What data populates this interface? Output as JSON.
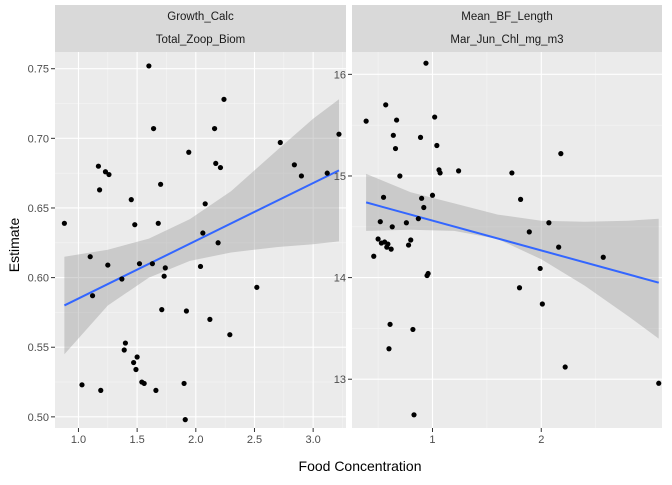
{
  "chart_data": [
    {
      "type": "scatter",
      "strip_labels": [
        "Growth_Calc",
        "Total_Zoop_Biom"
      ],
      "xlim": [
        0.8,
        3.28
      ],
      "ylim": [
        0.492,
        0.762
      ],
      "x_ticks": [
        1.0,
        1.5,
        2.0,
        2.5,
        3.0
      ],
      "x_tick_labels": [
        "1.0",
        "1.5",
        "2.0",
        "2.5",
        "3.0"
      ],
      "y_ticks": [
        0.5,
        0.55,
        0.6,
        0.65,
        0.7,
        0.75
      ],
      "y_tick_labels": [
        "0.50",
        "0.55",
        "0.60",
        "0.65",
        "0.70",
        "0.75"
      ],
      "points": [
        [
          0.88,
          0.639
        ],
        [
          1.03,
          0.523
        ],
        [
          1.1,
          0.615
        ],
        [
          1.12,
          0.587
        ],
        [
          1.17,
          0.68
        ],
        [
          1.18,
          0.663
        ],
        [
          1.19,
          0.519
        ],
        [
          1.23,
          0.676
        ],
        [
          1.25,
          0.609
        ],
        [
          1.26,
          0.674
        ],
        [
          1.37,
          0.599
        ],
        [
          1.39,
          0.548
        ],
        [
          1.4,
          0.553
        ],
        [
          1.45,
          0.656
        ],
        [
          1.47,
          0.539
        ],
        [
          1.48,
          0.638
        ],
        [
          1.49,
          0.534
        ],
        [
          1.5,
          0.543
        ],
        [
          1.52,
          0.61
        ],
        [
          1.54,
          0.525
        ],
        [
          1.56,
          0.524
        ],
        [
          1.6,
          0.752
        ],
        [
          1.63,
          0.61
        ],
        [
          1.64,
          0.707
        ],
        [
          1.66,
          0.519
        ],
        [
          1.68,
          0.639
        ],
        [
          1.7,
          0.667
        ],
        [
          1.71,
          0.577
        ],
        [
          1.73,
          0.601
        ],
        [
          1.74,
          0.607
        ],
        [
          1.9,
          0.524
        ],
        [
          1.91,
          0.498
        ],
        [
          1.92,
          0.576
        ],
        [
          1.94,
          0.69
        ],
        [
          2.04,
          0.608
        ],
        [
          2.06,
          0.632
        ],
        [
          2.08,
          0.653
        ],
        [
          2.12,
          0.57
        ],
        [
          2.16,
          0.707
        ],
        [
          2.17,
          0.682
        ],
        [
          2.19,
          0.625
        ],
        [
          2.21,
          0.679
        ],
        [
          2.24,
          0.728
        ],
        [
          2.29,
          0.559
        ],
        [
          2.52,
          0.593
        ],
        [
          2.72,
          0.697
        ],
        [
          2.84,
          0.681
        ],
        [
          2.9,
          0.673
        ],
        [
          3.12,
          0.675
        ],
        [
          3.22,
          0.703
        ]
      ],
      "fit_line": [
        [
          0.88,
          0.58
        ],
        [
          3.22,
          0.677
        ]
      ],
      "ci_band": {
        "x": [
          0.88,
          1.25,
          1.6,
          1.95,
          2.3,
          2.7,
          3.0,
          3.22
        ],
        "lower": [
          0.545,
          0.58,
          0.6,
          0.612,
          0.618,
          0.622,
          0.624,
          0.626
        ],
        "upper": [
          0.615,
          0.62,
          0.628,
          0.642,
          0.662,
          0.692,
          0.714,
          0.728
        ]
      }
    },
    {
      "type": "scatter",
      "strip_labels": [
        "Mean_BF_Length",
        "Mar_Jun_Chl_mg_m3"
      ],
      "xlim": [
        0.26,
        3.11
      ],
      "ylim": [
        12.52,
        16.22
      ],
      "x_ticks": [
        1,
        2
      ],
      "x_tick_labels": [
        "1",
        "2"
      ],
      "y_ticks": [
        13,
        14,
        15,
        16
      ],
      "y_tick_labels": [
        "13",
        "14",
        "15",
        "16"
      ],
      "points": [
        [
          0.39,
          15.54
        ],
        [
          0.46,
          14.21
        ],
        [
          0.5,
          14.38
        ],
        [
          0.52,
          14.55
        ],
        [
          0.53,
          14.34
        ],
        [
          0.55,
          14.79
        ],
        [
          0.56,
          14.35
        ],
        [
          0.57,
          15.7
        ],
        [
          0.58,
          14.3
        ],
        [
          0.59,
          14.33
        ],
        [
          0.6,
          13.3
        ],
        [
          0.61,
          13.54
        ],
        [
          0.62,
          14.28
        ],
        [
          0.63,
          14.5
        ],
        [
          0.64,
          15.4
        ],
        [
          0.66,
          15.27
        ],
        [
          0.67,
          15.55
        ],
        [
          0.7,
          15.0
        ],
        [
          0.76,
          14.54
        ],
        [
          0.78,
          14.32
        ],
        [
          0.8,
          14.37
        ],
        [
          0.82,
          13.49
        ],
        [
          0.83,
          12.65
        ],
        [
          0.87,
          14.58
        ],
        [
          0.89,
          15.38
        ],
        [
          0.9,
          14.78
        ],
        [
          0.92,
          14.69
        ],
        [
          0.94,
          16.11
        ],
        [
          0.95,
          14.02
        ],
        [
          0.96,
          14.04
        ],
        [
          1.0,
          14.81
        ],
        [
          1.02,
          15.58
        ],
        [
          1.04,
          15.3
        ],
        [
          1.06,
          15.06
        ],
        [
          1.07,
          15.03
        ],
        [
          1.24,
          15.05
        ],
        [
          1.73,
          15.03
        ],
        [
          1.8,
          13.9
        ],
        [
          1.81,
          14.77
        ],
        [
          1.89,
          14.45
        ],
        [
          1.99,
          14.09
        ],
        [
          2.01,
          13.74
        ],
        [
          2.07,
          14.54
        ],
        [
          2.16,
          14.3
        ],
        [
          2.18,
          15.22
        ],
        [
          2.22,
          13.12
        ],
        [
          2.57,
          14.2
        ],
        [
          3.08,
          12.96
        ]
      ],
      "fit_line": [
        [
          0.39,
          14.74
        ],
        [
          3.08,
          13.95
        ]
      ],
      "ci_band": {
        "x": [
          0.39,
          0.8,
          1.2,
          1.6,
          2.0,
          2.4,
          2.8,
          3.08
        ],
        "lower": [
          14.46,
          14.47,
          14.46,
          14.38,
          14.18,
          13.92,
          13.62,
          13.4
        ],
        "upper": [
          15.02,
          14.84,
          14.73,
          14.62,
          14.56,
          14.55,
          14.56,
          14.58
        ]
      }
    }
  ],
  "axes": {
    "xlabel": "Food Concentration",
    "ylabel": "Estimate"
  },
  "colors": {
    "panel_bg": "#EBEBEB",
    "strip_bg": "#D9D9D9",
    "grid_major": "#FFFFFF",
    "grid_minor": "#F5F5F5",
    "point": "#000000",
    "fit_line": "#3366FF",
    "ci_band": "#999999",
    "tick_text": "#4D4D4D",
    "strip_text": "#1A1A1A",
    "axis_title": "#000000"
  }
}
